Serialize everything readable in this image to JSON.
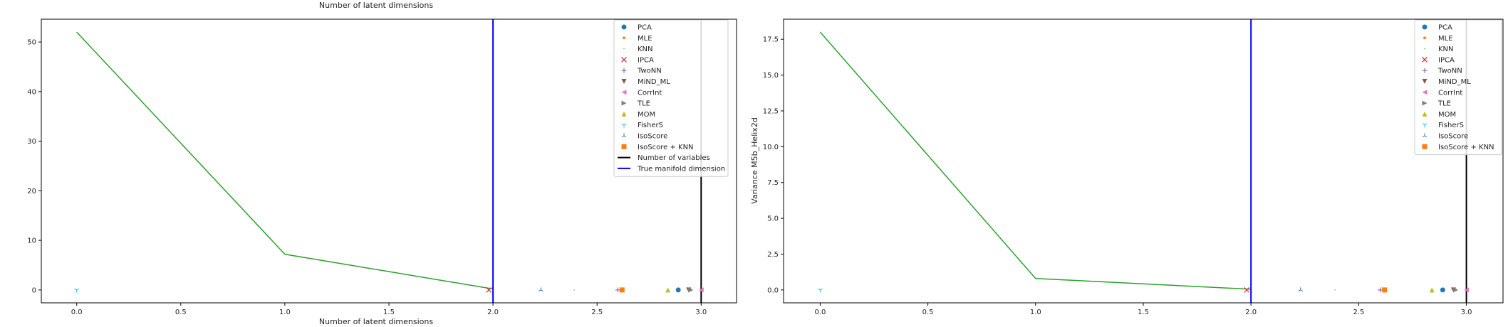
{
  "chart_data": [
    {
      "type": "line",
      "title": "Number of latent dimensions",
      "xlabel": "Number of latent dimensions",
      "ylabel": "",
      "xlim": [
        -0.17,
        3.17
      ],
      "ylim": [
        -2.6,
        54.6
      ],
      "xticks": [
        "0.0",
        "0.5",
        "1.0",
        "1.5",
        "2.0",
        "2.5",
        "3.0"
      ],
      "yticks": [
        "0",
        "10",
        "20",
        "30",
        "40",
        "50"
      ],
      "grid": false,
      "legend_position": "top-right",
      "series": [
        {
          "x": [
            0,
            1,
            2
          ],
          "y": [
            52.0,
            7.2,
            0.2
          ],
          "color": "#2ca02c"
        }
      ],
      "vlines": [
        {
          "name": "Number of variables",
          "x": 3.0,
          "color": "#000000"
        },
        {
          "name": "True manifold dimension",
          "x": 2.0,
          "color": "#0000ff"
        }
      ],
      "estimators": [
        {
          "name": "PCA",
          "x": 2.89,
          "y": 0,
          "marker": "circle",
          "color": "#1f77b4"
        },
        {
          "name": "MLE",
          "x": 2.95,
          "y": 0,
          "marker": "dot",
          "color": "#ff7f0e"
        },
        {
          "name": "KNN",
          "x": 2.39,
          "y": 0,
          "marker": "pixel",
          "color": "#2ca02c"
        },
        {
          "name": "IPCA",
          "x": 1.98,
          "y": 0,
          "marker": "x",
          "color": "#d62728"
        },
        {
          "name": "TwoNN",
          "x": 2.6,
          "y": 0,
          "marker": "plus",
          "color": "#9467bd"
        },
        {
          "name": "MiND_ML",
          "x": 2.94,
          "y": 0,
          "marker": "triangle_down",
          "color": "#8c564b"
        },
        {
          "name": "CorrInt",
          "x": 3.0,
          "y": 0,
          "marker": "triangle_left",
          "color": "#e377c2"
        },
        {
          "name": "TLE",
          "x": 2.95,
          "y": 0,
          "marker": "triangle_right",
          "color": "#7f7f7f"
        },
        {
          "name": "MOM",
          "x": 2.84,
          "y": 0,
          "marker": "triangle_up",
          "color": "#bcbd22"
        },
        {
          "name": "FisherS",
          "x": 0.0,
          "y": 0,
          "marker": "tri_down",
          "color": "#17becf"
        },
        {
          "name": "IsoScore",
          "x": 2.23,
          "y": 0,
          "marker": "tri_up",
          "color": "#1f77b4"
        },
        {
          "name": "IsoScore + KNN",
          "x": 2.62,
          "y": 0,
          "marker": "square",
          "color": "#ff7f0e"
        }
      ]
    },
    {
      "type": "line",
      "title": "",
      "xlabel": "",
      "ylabel": "Variance M5b_Helix2d",
      "xlim": [
        -0.17,
        3.17
      ],
      "ylim": [
        -0.9,
        18.9
      ],
      "xticks": [
        "0.0",
        "0.5",
        "1.0",
        "1.5",
        "2.0",
        "2.5",
        "3.0"
      ],
      "yticks": [
        "0.0",
        "2.5",
        "5.0",
        "7.5",
        "10.0",
        "12.5",
        "15.0",
        "17.5"
      ],
      "grid": false,
      "legend_position": "top-right",
      "series": [
        {
          "x": [
            0,
            1,
            2
          ],
          "y": [
            18.0,
            0.8,
            0.05
          ],
          "color": "#2ca02c"
        }
      ],
      "vlines": [
        {
          "name": "",
          "x": 3.0,
          "color": "#000000"
        },
        {
          "name": "",
          "x": 2.0,
          "color": "#0000ff"
        }
      ],
      "estimators": [
        {
          "name": "PCA",
          "x": 2.89,
          "y": 0,
          "marker": "circle",
          "color": "#1f77b4"
        },
        {
          "name": "MLE",
          "x": 2.95,
          "y": 0,
          "marker": "dot",
          "color": "#ff7f0e"
        },
        {
          "name": "KNN",
          "x": 2.39,
          "y": 0,
          "marker": "pixel",
          "color": "#2ca02c"
        },
        {
          "name": "IPCA",
          "x": 1.98,
          "y": 0,
          "marker": "x",
          "color": "#d62728"
        },
        {
          "name": "TwoNN",
          "x": 2.6,
          "y": 0,
          "marker": "plus",
          "color": "#9467bd"
        },
        {
          "name": "MiND_ML",
          "x": 2.94,
          "y": 0,
          "marker": "triangle_down",
          "color": "#8c564b"
        },
        {
          "name": "CorrInt",
          "x": 3.0,
          "y": 0,
          "marker": "triangle_left",
          "color": "#e377c2"
        },
        {
          "name": "TLE",
          "x": 2.95,
          "y": 0,
          "marker": "triangle_right",
          "color": "#7f7f7f"
        },
        {
          "name": "MOM",
          "x": 2.84,
          "y": 0,
          "marker": "triangle_up",
          "color": "#bcbd22"
        },
        {
          "name": "FisherS",
          "x": 0.0,
          "y": 0,
          "marker": "tri_down",
          "color": "#17becf"
        },
        {
          "name": "IsoScore",
          "x": 2.23,
          "y": 0,
          "marker": "tri_up",
          "color": "#1f77b4"
        },
        {
          "name": "IsoScore + KNN",
          "x": 2.62,
          "y": 0,
          "marker": "square",
          "color": "#ff7f0e"
        }
      ]
    }
  ]
}
